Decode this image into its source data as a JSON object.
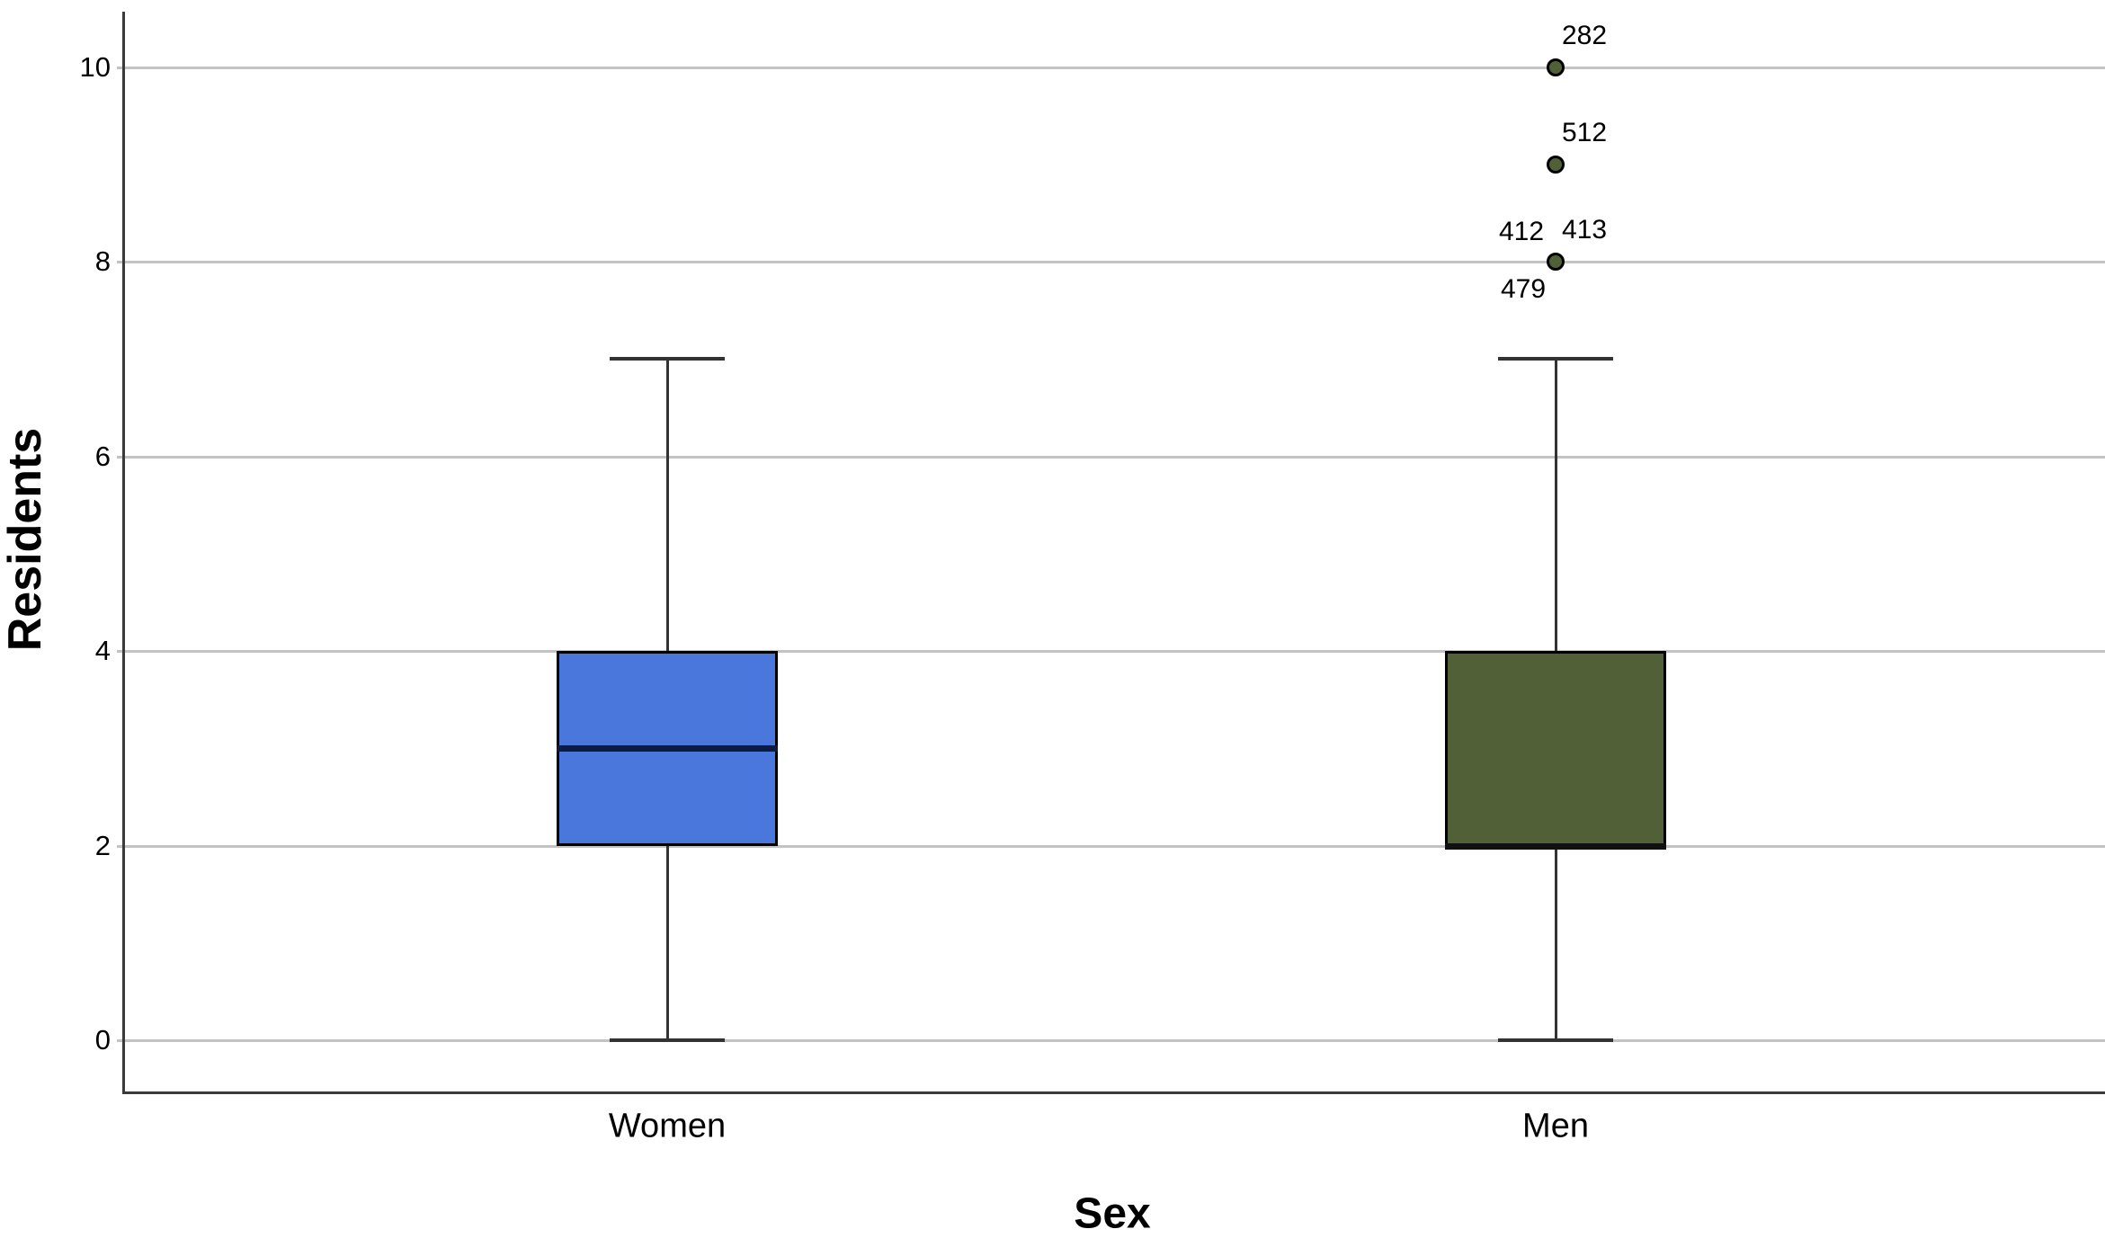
{
  "figure": {
    "background": "#ffffff"
  },
  "colors": {
    "gridline": "#c3c3c3",
    "axis": "#3a3a3a",
    "whisker": "#333333",
    "box_border": "#000000",
    "text": "#000000"
  },
  "chart_data": {
    "type": "boxplot",
    "title": "",
    "xlabel": "Sex",
    "ylabel": "Residents",
    "ylim": [
      -0.55,
      10.6
    ],
    "yticks": [
      0,
      2,
      4,
      6,
      8,
      10
    ],
    "grid": "horizontal",
    "legend": "none",
    "categories": [
      "Women",
      "Men"
    ],
    "series": [
      {
        "name": "Women",
        "q1": 2,
        "median": 3,
        "q3": 4,
        "whisker_low": 0,
        "whisker_high": 7,
        "box_color": "#4a77dc",
        "median_color": "#0d1b3e",
        "outliers": []
      },
      {
        "name": "Men",
        "q1": 2,
        "median": 2,
        "q3": 4,
        "whisker_low": 0,
        "whisker_high": 7,
        "box_color": "#526038",
        "median_color": "#111111",
        "outliers": [
          {
            "value": 10,
            "labels": [
              {
                "text": "282",
                "pos": "above-right"
              }
            ]
          },
          {
            "value": 9,
            "labels": [
              {
                "text": "512",
                "pos": "above-right"
              }
            ]
          },
          {
            "value": 8,
            "labels": [
              {
                "text": "412",
                "pos": "above-left"
              },
              {
                "text": "413",
                "pos": "above-right"
              },
              {
                "text": "479",
                "pos": "below-left"
              }
            ]
          }
        ]
      }
    ]
  }
}
